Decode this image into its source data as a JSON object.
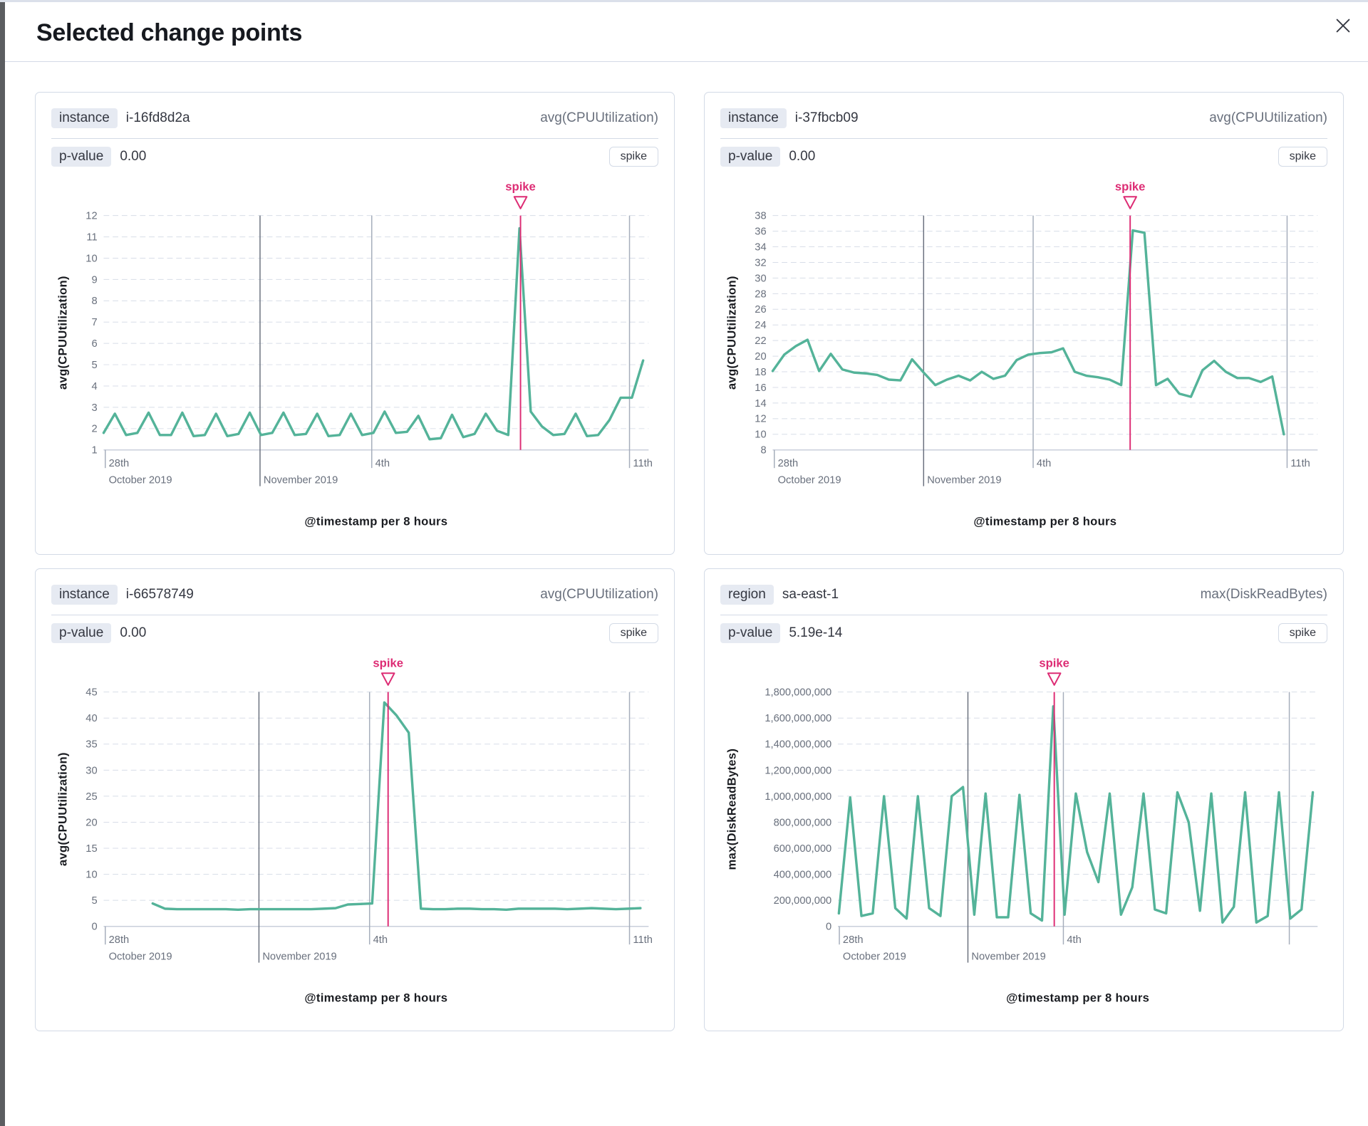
{
  "modal": {
    "title": "Selected change points"
  },
  "colors": {
    "line_green": "#54b399",
    "spike_pink": "#dd2c74",
    "grid_dashed": "#d8dde8",
    "grid_dark": "#69707d",
    "grid_light": "#a5adbb",
    "axis_line": "#c9cfdb"
  },
  "panels": [
    {
      "field_label": "instance",
      "field_value": "i-16fd8d2a",
      "metric": "avg(CPUUtilization)",
      "p_label": "p-value",
      "p_value": "0.00",
      "change_type": "spike",
      "chart_data": {
        "type": "line",
        "title": "instance i-16fd8d2a",
        "ylabel": "avg(CPUUtilization)",
        "xlabel": "@timestamp per 8 hours",
        "ymin": 1,
        "ymax": 12,
        "ytick_values": [
          12,
          11,
          10,
          9,
          8,
          7,
          6,
          5,
          4,
          3,
          2,
          1
        ],
        "ytick_labels": [
          "12",
          "11",
          "10",
          "9",
          "8",
          "7",
          "6",
          "5",
          "4",
          "3",
          "2",
          "1"
        ],
        "xticks": [
          {
            "frac": 0.003,
            "line": "tick",
            "l1": "28th",
            "l2": "October 2019"
          },
          {
            "frac": 0.287,
            "line": "dark",
            "l1": "",
            "l2": "November 2019"
          },
          {
            "frac": 0.492,
            "line": "light",
            "l1": "4th",
            "l2": ""
          },
          {
            "frac": 0.965,
            "line": "light",
            "l1": "11th",
            "l2": ""
          }
        ],
        "x_start": 0.0,
        "x_end": 0.99,
        "spike_frac": 0.765,
        "annotation_label": "spike",
        "values": [
          1.8,
          2.7,
          1.7,
          1.8,
          2.75,
          1.7,
          1.7,
          2.75,
          1.65,
          1.7,
          2.7,
          1.65,
          1.75,
          2.75,
          1.7,
          1.8,
          2.75,
          1.7,
          1.75,
          2.7,
          1.65,
          1.7,
          2.7,
          1.7,
          1.8,
          2.8,
          1.8,
          1.85,
          2.6,
          1.5,
          1.55,
          2.65,
          1.6,
          1.75,
          2.7,
          1.9,
          1.7,
          11.4,
          2.8,
          2.1,
          1.7,
          1.75,
          2.7,
          1.65,
          1.7,
          2.4,
          3.45,
          3.45,
          5.2
        ]
      }
    },
    {
      "field_label": "instance",
      "field_value": "i-37fbcb09",
      "metric": "avg(CPUUtilization)",
      "p_label": "p-value",
      "p_value": "0.00",
      "change_type": "spike",
      "chart_data": {
        "type": "line",
        "title": "instance i-37fbcb09",
        "ylabel": "avg(CPUUtilization)",
        "xlabel": "@timestamp per 8 hours",
        "ymin": 8,
        "ymax": 38,
        "ytick_values": [
          38,
          36,
          34,
          32,
          30,
          28,
          26,
          24,
          22,
          20,
          18,
          16,
          14,
          12,
          10,
          8
        ],
        "ytick_labels": [
          "38",
          "36",
          "34",
          "32",
          "30",
          "28",
          "26",
          "24",
          "22",
          "20",
          "18",
          "16",
          "14",
          "12",
          "10",
          "8"
        ],
        "xticks": [
          {
            "frac": 0.003,
            "line": "tick",
            "l1": "28th",
            "l2": "October 2019"
          },
          {
            "frac": 0.277,
            "line": "dark",
            "l1": "",
            "l2": "November 2019"
          },
          {
            "frac": 0.478,
            "line": "light",
            "l1": "4th",
            "l2": ""
          },
          {
            "frac": 0.944,
            "line": "light",
            "l1": "11th",
            "l2": ""
          }
        ],
        "x_start": 0.0,
        "x_end": 0.938,
        "spike_frac": 0.656,
        "annotation_label": "spike",
        "values": [
          18.1,
          20.2,
          21.3,
          22.1,
          18.1,
          20.3,
          18.3,
          17.9,
          17.8,
          17.6,
          17.0,
          16.9,
          19.6,
          17.9,
          16.3,
          17.0,
          17.5,
          16.9,
          18.0,
          17.1,
          17.5,
          19.5,
          20.2,
          20.4,
          20.5,
          21.0,
          18.0,
          17.5,
          17.3,
          17.0,
          16.3,
          36.1,
          35.8,
          16.3,
          17.1,
          15.2,
          14.8,
          18.2,
          19.4,
          18.0,
          17.2,
          17.2,
          16.7,
          17.4,
          10.0
        ]
      }
    },
    {
      "field_label": "instance",
      "field_value": "i-66578749",
      "metric": "avg(CPUUtilization)",
      "p_label": "p-value",
      "p_value": "0.00",
      "change_type": "spike",
      "chart_data": {
        "type": "line",
        "title": "instance i-66578749",
        "ylabel": "avg(CPUUtilization)",
        "xlabel": "@timestamp per 8 hours",
        "ymin": 0,
        "ymax": 45,
        "ytick_values": [
          45,
          40,
          35,
          30,
          25,
          20,
          15,
          10,
          5,
          0
        ],
        "ytick_labels": [
          "45",
          "40",
          "35",
          "30",
          "25",
          "20",
          "15",
          "10",
          "5",
          "0"
        ],
        "xticks": [
          {
            "frac": 0.003,
            "line": "tick",
            "l1": "28th",
            "l2": "October 2019"
          },
          {
            "frac": 0.285,
            "line": "dark",
            "l1": "",
            "l2": "November 2019"
          },
          {
            "frac": 0.488,
            "line": "light",
            "l1": "4th",
            "l2": ""
          },
          {
            "frac": 0.965,
            "line": "light",
            "l1": "11th",
            "l2": ""
          }
        ],
        "x_start": 0.09,
        "x_end": 0.985,
        "spike_frac": 0.522,
        "annotation_label": "spike",
        "values": [
          4.4,
          3.4,
          3.3,
          3.3,
          3.3,
          3.3,
          3.3,
          3.2,
          3.3,
          3.3,
          3.3,
          3.3,
          3.3,
          3.3,
          3.4,
          3.5,
          4.2,
          4.3,
          4.4,
          43.0,
          40.5,
          37.2,
          3.4,
          3.3,
          3.3,
          3.4,
          3.4,
          3.3,
          3.3,
          3.2,
          3.4,
          3.4,
          3.4,
          3.4,
          3.3,
          3.4,
          3.5,
          3.4,
          3.3,
          3.4,
          3.5
        ]
      }
    },
    {
      "field_label": "region",
      "field_value": "sa-east-1",
      "metric": "max(DiskReadBytes)",
      "p_label": "p-value",
      "p_value": "5.19e-14",
      "change_type": "spike",
      "chart_data": {
        "type": "line",
        "title": "region sa-east-1",
        "ylabel": "max(DiskReadBytes)",
        "xlabel": "@timestamp per 8 hours",
        "ymin": 0,
        "ymax": 1800000000,
        "ytick_values": [
          1800000000,
          1600000000,
          1400000000,
          1200000000,
          1000000000,
          800000000,
          600000000,
          400000000,
          200000000,
          0
        ],
        "ytick_labels": [
          "1,800,000,000",
          "1,600,000,000",
          "1,400,000,000",
          "1,200,000,000",
          "1,000,000,000",
          "800,000,000",
          "600,000,000",
          "400,000,000",
          "200,000,000",
          "0"
        ],
        "xticks": [
          {
            "frac": 0.003,
            "line": "tick",
            "l1": "28th",
            "l2": "October 2019"
          },
          {
            "frac": 0.271,
            "line": "dark",
            "l1": "",
            "l2": "November 2019"
          },
          {
            "frac": 0.47,
            "line": "light",
            "l1": "4th",
            "l2": ""
          },
          {
            "frac": 0.941,
            "line": "light",
            "l1": "",
            "l2": ""
          }
        ],
        "x_start": 0.002,
        "x_end": 0.99,
        "spike_frac": 0.451,
        "annotation_label": "spike",
        "values": [
          100000000,
          990000000,
          80000000,
          100000000,
          1000000000,
          140000000,
          60000000,
          1000000000,
          140000000,
          80000000,
          1000000000,
          1070000000,
          90000000,
          1020000000,
          70000000,
          70000000,
          1010000000,
          100000000,
          45000000,
          1690000000,
          90000000,
          1020000000,
          570000000,
          340000000,
          1020000000,
          90000000,
          300000000,
          1020000000,
          130000000,
          100000000,
          1030000000,
          800000000,
          120000000,
          1020000000,
          30000000,
          150000000,
          1030000000,
          30000000,
          80000000,
          1030000000,
          60000000,
          130000000,
          1030000000
        ]
      }
    }
  ]
}
